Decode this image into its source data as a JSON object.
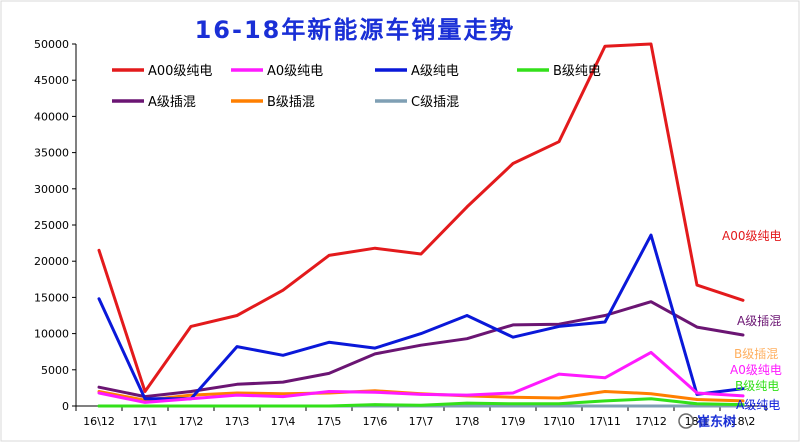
{
  "chart_data": {
    "type": "line",
    "title": "16-18年新能源车销量走势",
    "categories": [
      "16\\12",
      "17\\1",
      "17\\2",
      "17\\3",
      "17\\4",
      "17\\5",
      "17\\6",
      "17\\7",
      "17\\8",
      "17\\9",
      "17\\10",
      "17\\11",
      "17\\12",
      "18\\1",
      "18\\2"
    ],
    "ylim": [
      0,
      50000
    ],
    "yticks": [
      0,
      5000,
      10000,
      15000,
      20000,
      25000,
      30000,
      35000,
      40000,
      45000,
      50000
    ],
    "grid": false,
    "legend_position": "top-left",
    "series": [
      {
        "name": "A00级纯电",
        "color": "#e31a1c",
        "values": [
          21500,
          2000,
          11000,
          12500,
          16000,
          20800,
          21800,
          21000,
          27500,
          33500,
          36500,
          49700,
          50000,
          16700,
          14600
        ]
      },
      {
        "name": "A0级纯电",
        "color": "#ff1aff",
        "values": [
          1800,
          500,
          1000,
          1500,
          1300,
          2000,
          1900,
          1600,
          1500,
          1800,
          4400,
          3900,
          7400,
          1800,
          1400
        ]
      },
      {
        "name": "A级纯电",
        "color": "#0a18d9",
        "values": [
          14800,
          1000,
          1000,
          8200,
          7000,
          8800,
          8000,
          10000,
          12500,
          9500,
          11000,
          11600,
          23600,
          1600,
          2400
        ]
      },
      {
        "name": "B级纯电",
        "color": "#33e01a",
        "values": [
          0,
          0,
          0,
          0,
          0,
          0,
          200,
          100,
          400,
          300,
          300,
          700,
          1000,
          300,
          200
        ]
      },
      {
        "name": "A级插混",
        "color": "#6b1573",
        "values": [
          2600,
          1300,
          2000,
          3000,
          3300,
          4500,
          7200,
          8400,
          9300,
          11200,
          11300,
          12500,
          14400,
          10900,
          9800
        ]
      },
      {
        "name": "B级插混",
        "color": "#ff7f00",
        "values": [
          2000,
          800,
          1500,
          1800,
          1700,
          1800,
          2100,
          1700,
          1400,
          1200,
          1100,
          2000,
          1700,
          900,
          700
        ]
      },
      {
        "name": "C级插混",
        "color": "#7f9fb4",
        "values": [
          0,
          0,
          0,
          0,
          0,
          0,
          0,
          0,
          0,
          0,
          0,
          0,
          0,
          0,
          0
        ]
      }
    ],
    "end_labels": [
      {
        "text": "A00级纯电",
        "color": "#e31a1c"
      },
      {
        "text": "A级插混",
        "color": "#6b1573"
      },
      {
        "text": "B级插混",
        "color": "#ffb060"
      },
      {
        "text": "A0级纯电",
        "color": "#ff1aff"
      },
      {
        "text": "B级纯电",
        "color": "#33e01a"
      },
      {
        "text": "A级纯电",
        "color": "#0a18d9"
      }
    ],
    "watermark": "崔东树"
  }
}
